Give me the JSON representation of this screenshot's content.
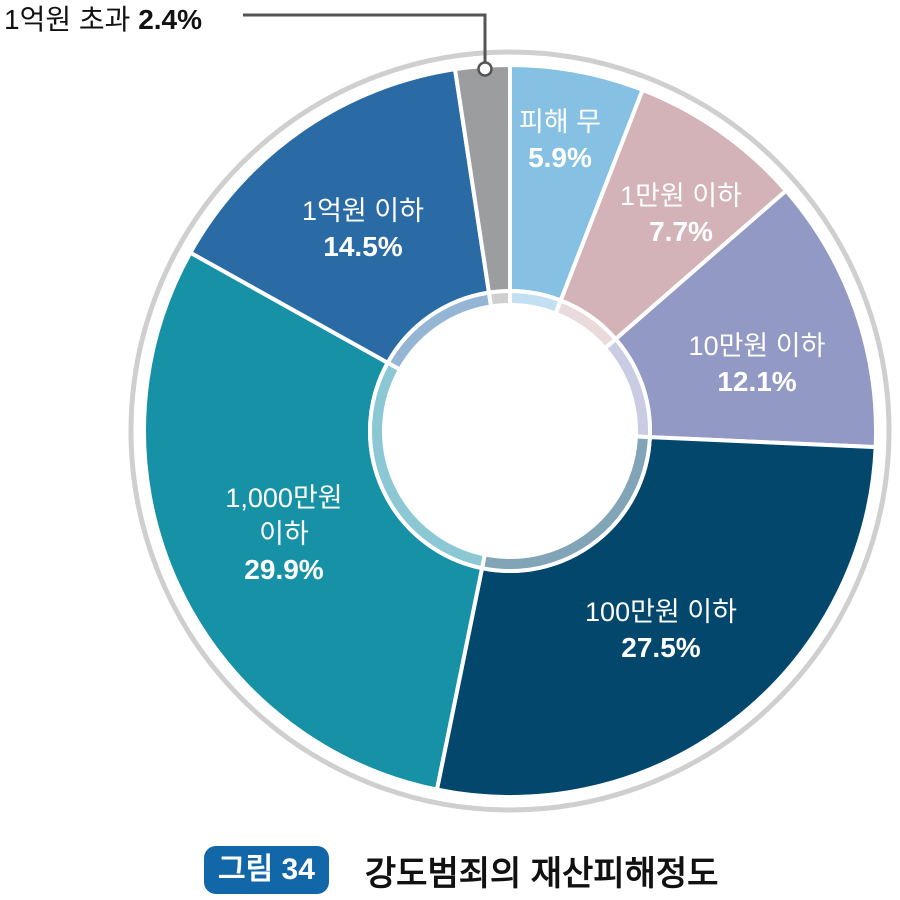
{
  "chart_data": {
    "type": "pie",
    "variant": "donut",
    "title": "강도범죄의 재산피해정도",
    "figure_label": "그림 34",
    "start_angle": "12 o'clock, clockwise",
    "categories": [
      "피해 무",
      "1만원 이하",
      "10만원 이하",
      "100만원 이하",
      "1,000만원 이하",
      "1억원 이하",
      "1억원 초과"
    ],
    "values": [
      5.9,
      7.7,
      12.1,
      27.5,
      29.9,
      14.5,
      2.4
    ],
    "unit": "%",
    "colors": [
      "#86C0E2",
      "#D4B3B8",
      "#9199C4",
      "#03476D",
      "#1791A5",
      "#2A6BA6",
      "#9C9D9E"
    ],
    "inner_ring_colors": [
      "#C2E0F2",
      "#E9DADC",
      "#C9CCE2",
      "#82A4B7",
      "#8CC8D3",
      "#95B5D4",
      "#CFCFCF"
    ]
  },
  "labels": {
    "s0": {
      "name": "피해 무",
      "pct": "5.9%"
    },
    "s1": {
      "name": "1만원 이하",
      "pct": "7.7%"
    },
    "s2": {
      "name": "10만원 이하",
      "pct": "12.1%"
    },
    "s3": {
      "name": "100만원 이하",
      "pct": "27.5%"
    },
    "s4": {
      "name1": "1,000만원",
      "name2": "이하",
      "pct": "29.9%"
    },
    "s5": {
      "name": "1억원 이하",
      "pct": "14.5%"
    },
    "s6": {
      "name": "1억원 초과",
      "pct": "2.4%"
    }
  },
  "caption": {
    "badge": "그림 34",
    "title": "강도범죄의 재산피해정도"
  }
}
